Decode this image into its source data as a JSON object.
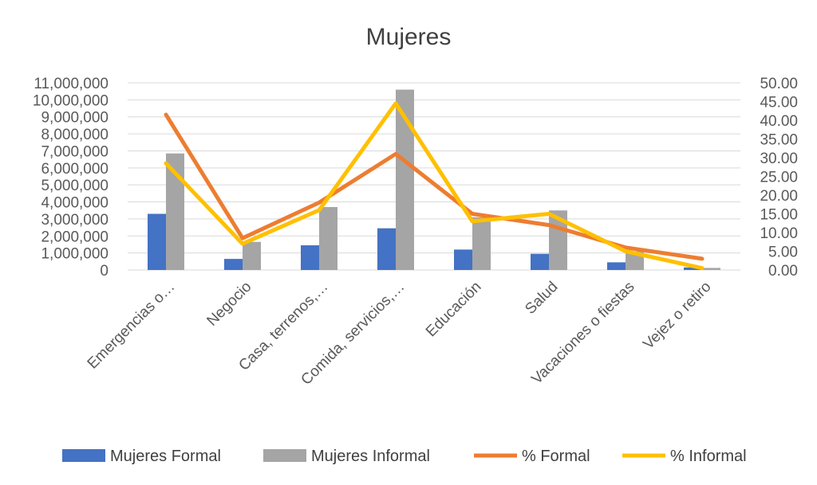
{
  "chart_data": {
    "type": "bar",
    "title": "Mujeres",
    "categories": [
      "Emergencias o…",
      "Negocio",
      "Casa, terrenos,…",
      "Comida, servicios,…",
      "Educación",
      "Salud",
      "Vacaciones o fiestas",
      "Vejez o retiro"
    ],
    "series": [
      {
        "name": "Mujeres Formal",
        "type": "bar",
        "axis": "left",
        "color": "#4472C4",
        "values": [
          3300000,
          650000,
          1450000,
          2450000,
          1200000,
          950000,
          450000,
          150000
        ]
      },
      {
        "name": "Mujeres Informal",
        "type": "bar",
        "axis": "left",
        "color": "#A5A5A5",
        "values": [
          6850000,
          1650000,
          3700000,
          10600000,
          3100000,
          3500000,
          1100000,
          120000
        ]
      },
      {
        "name": "% Formal",
        "type": "line",
        "axis": "right",
        "color": "#ED7D31",
        "values": [
          41.5,
          8.5,
          18.0,
          31.0,
          15.0,
          12.0,
          6.0,
          3.0
        ]
      },
      {
        "name": "% Informal",
        "type": "line",
        "axis": "right",
        "color": "#FFC000",
        "values": [
          28.5,
          7.0,
          16.0,
          44.5,
          13.0,
          15.0,
          5.0,
          0.5
        ]
      }
    ],
    "y_left": {
      "ylim": [
        0,
        11000000
      ],
      "ticks": [
        0,
        1000000,
        2000000,
        3000000,
        4000000,
        5000000,
        6000000,
        7000000,
        8000000,
        9000000,
        10000000,
        11000000
      ],
      "tick_labels": [
        "0",
        "1,000,000",
        "2,000,000",
        "3,000,000",
        "4,000,000",
        "5,000,000",
        "6,000,000",
        "7,000,000",
        "8,000,000",
        "9,000,000",
        "10,000,000",
        "11,000,000"
      ]
    },
    "y_right": {
      "ylim": [
        0,
        50
      ],
      "ticks": [
        0,
        5,
        10,
        15,
        20,
        25,
        30,
        35,
        40,
        45,
        50
      ],
      "tick_labels": [
        "0.00",
        "5.00",
        "10.00",
        "15.00",
        "20.00",
        "25.00",
        "30.00",
        "35.00",
        "40.00",
        "45.00",
        "50.00"
      ]
    },
    "grid": true,
    "legend_position": "bottom"
  }
}
